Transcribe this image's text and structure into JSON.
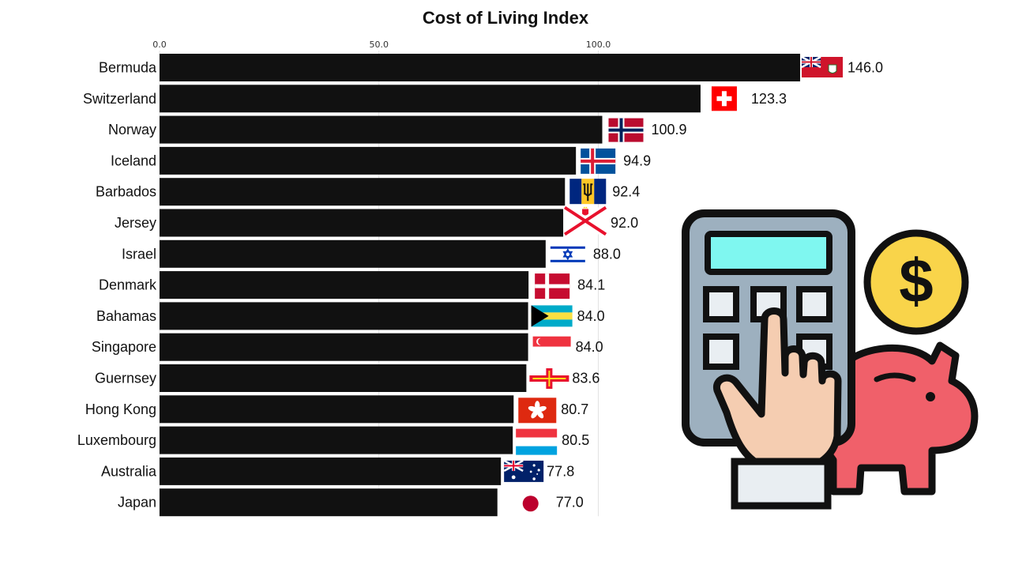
{
  "chart_data": {
    "type": "bar",
    "orientation": "horizontal",
    "title": "Cost of Living Index",
    "xlabel": "",
    "ylabel": "",
    "xlim": [
      0,
      146
    ],
    "x_ticks": [
      "0.0",
      "50.0",
      "100.0"
    ],
    "grid": true,
    "categories": [
      "Bermuda",
      "Switzerland",
      "Norway",
      "Iceland",
      "Barbados",
      "Jersey",
      "Israel",
      "Denmark",
      "Bahamas",
      "Singapore",
      "Guernsey",
      "Hong Kong",
      "Luxembourg",
      "Australia",
      "Japan"
    ],
    "values": [
      146.0,
      123.3,
      100.9,
      94.9,
      92.4,
      92.0,
      88.0,
      84.1,
      84.0,
      84.0,
      83.6,
      80.7,
      80.5,
      77.8,
      77.0
    ],
    "value_labels": [
      "146.0",
      "123.3",
      "100.9",
      "94.9",
      "92.4",
      "92.0",
      "88.0",
      "84.1",
      "84.0",
      "84.0",
      "83.6",
      "80.7",
      "80.5",
      "77.8",
      "77.0"
    ],
    "flags": [
      "bermuda-flag-icon",
      "switzerland-flag-icon",
      "norway-flag-icon",
      "iceland-flag-icon",
      "barbados-flag-icon",
      "jersey-flag-icon",
      "israel-flag-icon",
      "denmark-flag-icon",
      "bahamas-flag-icon",
      "singapore-flag-icon",
      "guernsey-flag-icon",
      "hong-kong-flag-icon",
      "luxembourg-flag-icon",
      "australia-flag-icon",
      "japan-flag-icon"
    ],
    "bar_color": "#111111"
  },
  "illustration": {
    "icon": "calculator-hand-piggy-bank-coin-icon",
    "coin_symbol": "$",
    "colors": {
      "outline": "#111111",
      "calculator_body": "#9db0bf",
      "screen": "#7ff7f0",
      "keys": "#e9eef2",
      "hand": "#f5cdb1",
      "cuff": "#e9eef2",
      "piggy": "#f0606a",
      "coin": "#f9d44a"
    }
  }
}
